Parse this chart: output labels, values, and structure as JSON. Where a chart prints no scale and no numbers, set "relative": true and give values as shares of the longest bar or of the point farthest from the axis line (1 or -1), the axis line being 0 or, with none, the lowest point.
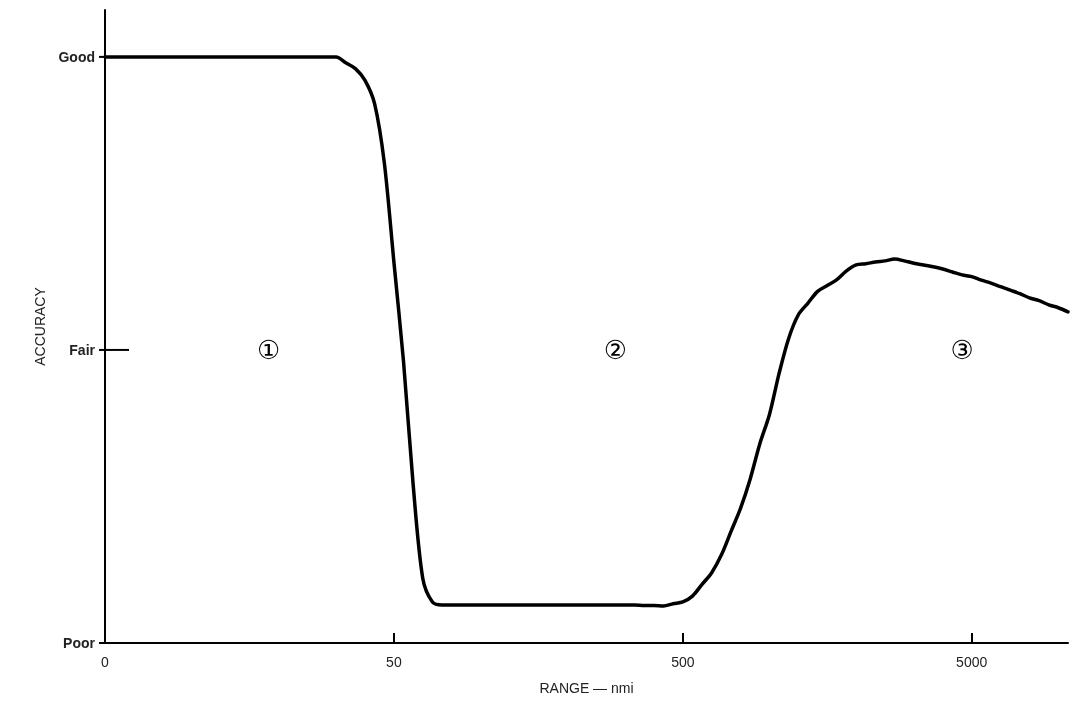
{
  "chart_data": {
    "type": "line",
    "xlabel": "RANGE — nmi",
    "ylabel": "ACCURACY",
    "relative": true,
    "categories": [
      "0",
      null,
      null,
      null,
      null,
      null,
      null,
      null,
      null,
      null,
      null,
      null,
      null,
      null,
      null,
      null,
      null,
      null,
      null,
      null,
      null,
      null,
      null,
      null,
      null,
      null,
      null,
      null,
      null,
      null,
      "50",
      null,
      null,
      null,
      null,
      null,
      null,
      null,
      null,
      null,
      null,
      null,
      null,
      null,
      null,
      null,
      null,
      null,
      null,
      null,
      null,
      null,
      null,
      null,
      null,
      null,
      null,
      null,
      null,
      null,
      "500",
      null,
      null,
      null,
      null,
      null,
      null,
      null,
      null,
      null,
      null,
      null,
      null,
      null,
      null,
      null,
      null,
      null,
      null,
      null,
      null,
      null,
      null,
      null,
      null,
      null,
      null,
      null,
      null,
      null,
      "5000",
      null,
      null,
      null,
      null,
      null,
      null,
      null,
      null,
      null,
      null
    ],
    "grid": false,
    "marker": "none",
    "line_style": "solid",
    "series": [
      {
        "color": "#000000",
        "values": [
          1,
          1,
          1,
          1,
          1,
          1,
          1,
          1,
          1,
          1,
          1,
          1,
          1,
          1,
          1,
          1,
          1,
          1,
          1,
          1,
          1,
          1,
          1,
          1,
          1,
          0.99,
          0.98,
          0.96,
          0.92,
          0.82,
          0.65,
          0.48,
          0.27,
          0.11,
          0.07,
          0.065,
          0.065,
          0.065,
          0.065,
          0.065,
          0.065,
          0.065,
          0.065,
          0.065,
          0.065,
          0.065,
          0.065,
          0.065,
          0.065,
          0.065,
          0.065,
          0.065,
          0.065,
          0.065,
          0.065,
          0.065,
          0.064,
          0.064,
          0.063,
          0.067,
          0.07,
          0.08,
          0.1,
          0.12,
          0.15,
          0.19,
          0.23,
          0.28,
          0.34,
          0.39,
          0.46,
          0.52,
          0.56,
          0.58,
          0.6,
          0.61,
          0.62,
          0.635,
          0.645,
          0.647,
          0.65,
          0.652,
          0.655,
          0.652,
          0.648,
          0.645,
          0.642,
          0.638,
          0.633,
          0.628,
          0.625,
          0.619,
          0.614,
          0.608,
          0.602,
          0.596,
          0.589,
          0.584,
          0.577,
          0.572,
          0.565
        ]
      }
    ],
    "annotations": [
      "Good",
      "Fair",
      "Poor",
      "①",
      "②",
      "③"
    ]
  }
}
